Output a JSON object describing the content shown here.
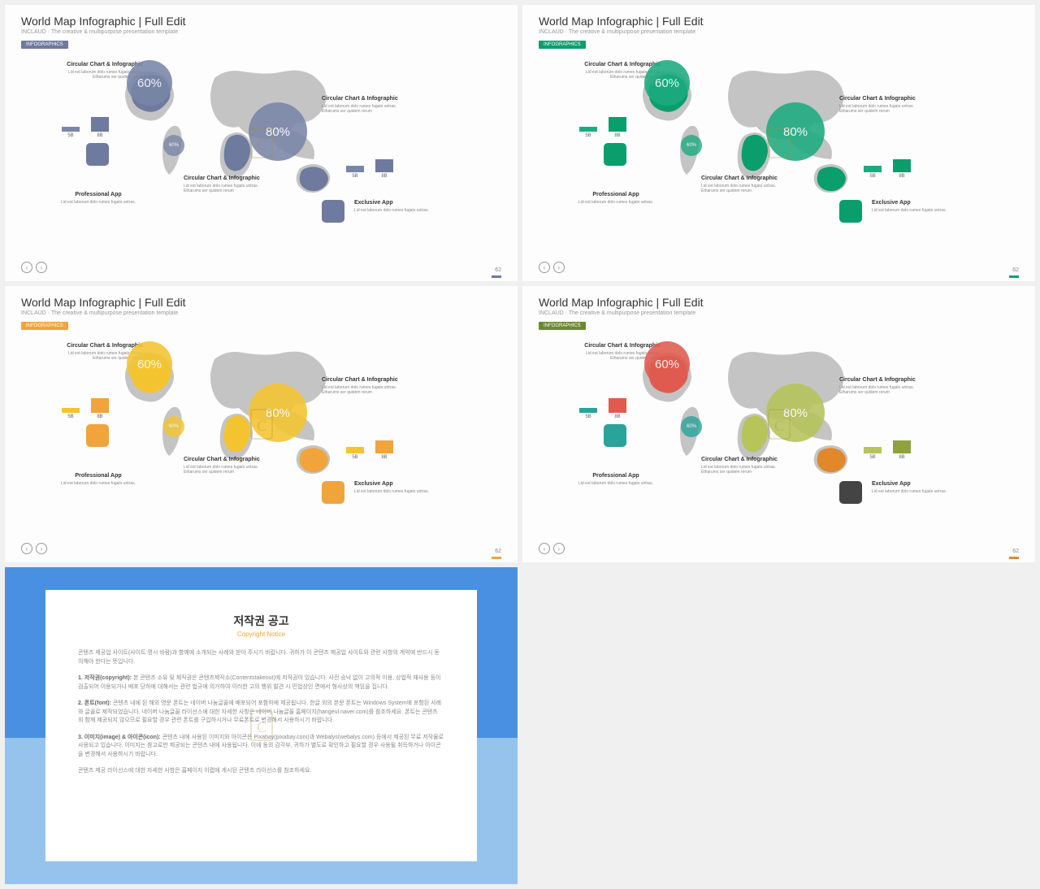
{
  "common": {
    "title": "World Map Infographic | Full Edit",
    "subtitle": "INCLAUD · The creative & multipurpose presentation template",
    "badge": "INFOGRAPHICS",
    "page_num": "62",
    "circ1_pct": "60%",
    "circ2_pct": "80%",
    "circ3_pct": "60%",
    "bar_labels": [
      "5B",
      "8B"
    ],
    "block1_h": "Circular Chart & Infographic",
    "block1_p": "Lid est laborum dolo rumes fugats untras. Etharums ser quidem rerum",
    "block2_h": "Circular Chart & Infographic",
    "block2_p": "Lid est laborum dolo rumes fugats untras. Etharums ser quidem rerum",
    "block3_h": "Professional App",
    "block3_p": "Lid est laborum dolo rumes fugats untras.",
    "block4_h": "Circular Chart & Infographic",
    "block4_p": "Lid est laborum dolo rumes fugats untras. Etharums ser quidem rerum",
    "block5_h": "Exclusive App",
    "block5_p": "Lid est laborum dolo rumes fugats untras.",
    "map_gray": "#c4c4c4",
    "bar_heights": {
      "left_small": 6,
      "left_big": 18,
      "right_small": 8,
      "right_big": 16
    }
  },
  "variants": [
    {
      "badge_bg": "#6e7a9e",
      "accent": "#6e7a9e",
      "circ1": "#7886a8",
      "circ2": "#7886a8",
      "circ3": "#7886a8",
      "bar1": "#7886a8",
      "bar2": "#6e7a9e",
      "bar3": "#7886a8",
      "bar4": "#6e7a9e",
      "sq1": "#6e7a9e",
      "sq2": "#6e7a9e",
      "hl1": "#6e7a9e",
      "hl2": "#6e7a9e",
      "hl3": "#6e7a9e"
    },
    {
      "badge_bg": "#0a9e6d",
      "accent": "#0a9e6d",
      "circ1": "#1cab7f",
      "circ2": "#1cab7f",
      "circ3": "#1cab7f",
      "bar1": "#1cab7f",
      "bar2": "#0a9e6d",
      "bar3": "#1cab7f",
      "bar4": "#0a9e6d",
      "sq1": "#0a9e6d",
      "sq2": "#0a9e6d",
      "hl1": "#0a9e6d",
      "hl2": "#0a9e6d",
      "hl3": "#0a9e6d"
    },
    {
      "badge_bg": "#f1a43c",
      "accent": "#f1a43c",
      "circ1": "#f4c430",
      "circ2": "#f4c430",
      "circ3": "#f4c430",
      "bar1": "#f4c430",
      "bar2": "#f1a43c",
      "bar3": "#f4c430",
      "bar4": "#f1a43c",
      "sq1": "#f1a43c",
      "sq2": "#f1a43c",
      "hl1": "#f4c430",
      "hl2": "#f1a43c",
      "hl3": "#f4c430"
    },
    {
      "badge_bg": "#6a8a2f",
      "accent": "#e0882a",
      "circ1": "#e05b4f",
      "circ2": "#b6c45a",
      "circ3": "#2aa39a",
      "bar1": "#2aa39a",
      "bar2": "#e05b4f",
      "bar3": "#b6c45a",
      "bar4": "#8fa23e",
      "sq1": "#2aa39a",
      "sq2": "#444444",
      "hl1": "#e05b4f",
      "hl2": "#e0882a",
      "hl3": "#b6c45a"
    }
  ],
  "copyright": {
    "title": "저작권 공고",
    "subtitle": "Copyright Notice",
    "p1": "콘텐츠 제공업 사이트(사이트 명시 바람)과 함께에 소개되는 사례와 받아 주시기 바랍니다. 귀하가 이 콘텐츠 제공업 사이트와 관련 사항의 계약에 반드시 동의해야 한다는 뜻입니다.",
    "p2_b": "1. 저작권(copyright):",
    "p2": " 본 콘텐츠 소유 및 제작권은 콘텐츠제작소(Contentstakeout)에 저작권이 있습니다. 사전 승낙 없이 고의적 이용, 상업적 재사용 등이 검출되어 이용되거나 배포 당하에 대해서는 관련 법규에 의거하여 이러한 고의 행위 발견 시 민법상인 면에서 형사상의 책임을 집니다.",
    "p3_b": "2. 폰트(font):",
    "p3": " 콘텐츠 내에 된 해외 영문 폰트는 네이버 나눔글꼴에 배포되어 포함하에 제공됩니다. 한글 외의 본문 폰트는 Windows System에 포함된 사례와 글꼴로 제작되었습니다. 네이버 나눔글꼴 라이선스에 대한 자세한 사항은 네이버 나눔글꼴 홈페이지(hangeul.naver.com)를 참조하세요. 폰트는 콘텐츠 외 함께 제공되지 않으므로 필요할 경우 관련 폰트를 구입하시거나 무료폰트로 변경해서 사용하시기 바랍니다.",
    "p4_b": "3. 이미지(image) & 아이콘(icon):",
    "p4": " 콘텐츠 내에 사용된 이미지와 아이콘은 Pixabay(pixabay.com)과 Webalys(webalys.com) 등에서 제공된 무료 저작물로 사용되고 있습니다. 이미지는 참고로만 제공되는 콘텐츠 내에 사용됩니다. 이에 동의 감각부, 귀하가 별도로 확인하고 필요할 경우 사용될 취득하거나 아이콘을 변경해서 사용하시기 바랍니다.",
    "p5": "콘텐츠 제공 라이선스에 대한 자세한 사항은 홈페이지 이랩에 게시된 콘텐츠 라이선스를 참조하세요."
  }
}
